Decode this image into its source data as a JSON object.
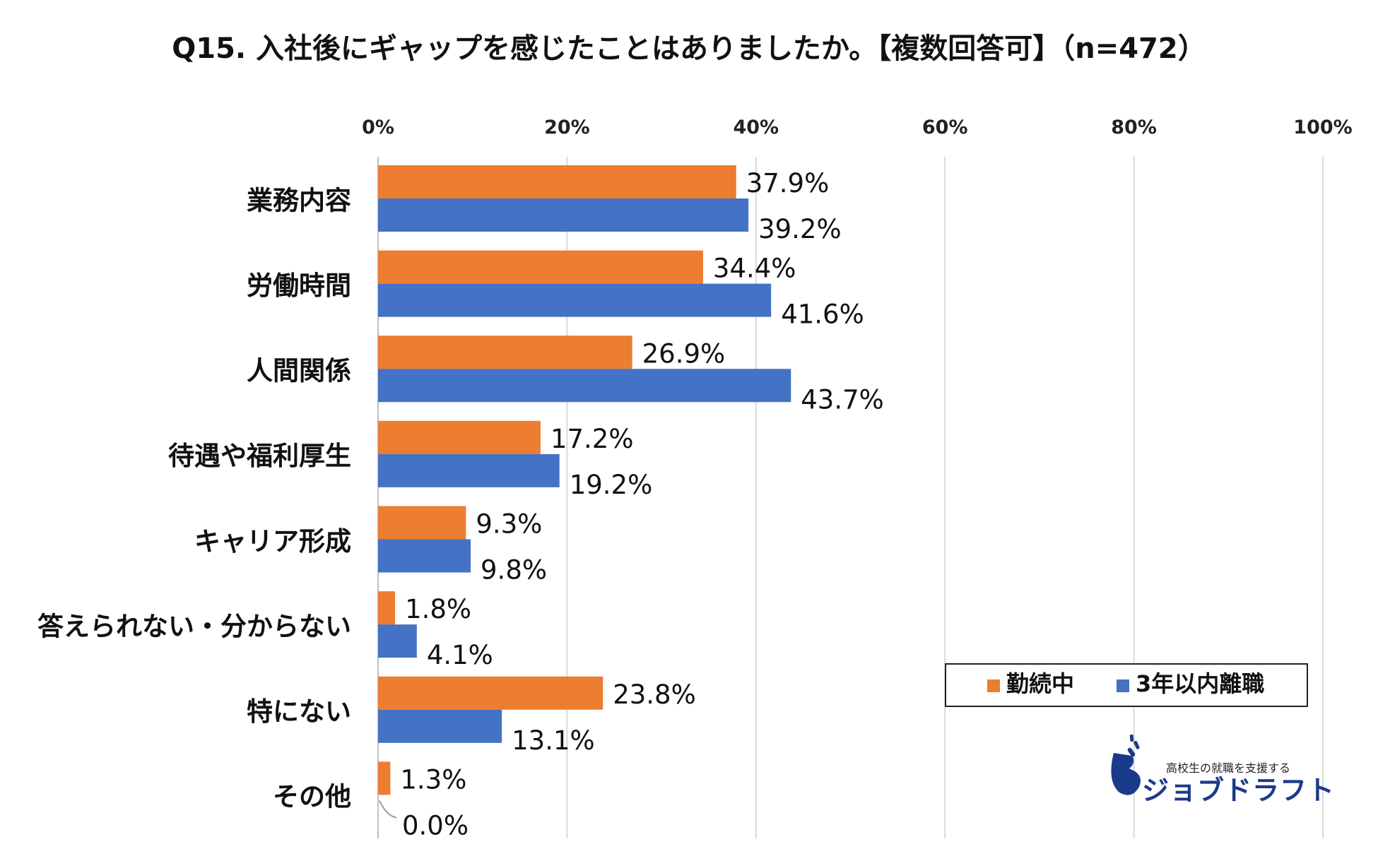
{
  "chart_data": {
    "type": "bar",
    "orientation": "horizontal",
    "title": "Q15. 入社後にギャップを感じたことはありましたか。【複数回答可】（n=472）",
    "x_ticks": [
      "0%",
      "20%",
      "40%",
      "60%",
      "80%",
      "100%"
    ],
    "xlim": [
      0,
      100
    ],
    "grid": true,
    "legend_position": "right",
    "categories": [
      "業務内容",
      "労働時間",
      "人間関係",
      "待遇や福利厚生",
      "キャリア形成",
      "答えられない・分からない",
      "特にない",
      "その他"
    ],
    "series": [
      {
        "name": "勤続中",
        "color": "#ed7d31",
        "values": [
          37.9,
          34.4,
          26.9,
          17.2,
          9.3,
          1.8,
          23.8,
          1.3
        ],
        "labels": [
          "37.9%",
          "34.4%",
          "26.9%",
          "17.2%",
          "9.3%",
          "1.8%",
          "23.8%",
          "1.3%"
        ]
      },
      {
        "name": "3年以内離職",
        "color": "#4472c4",
        "values": [
          39.2,
          41.6,
          43.7,
          19.2,
          9.8,
          4.1,
          13.1,
          0.0
        ],
        "labels": [
          "39.2%",
          "41.6%",
          "43.7%",
          "19.2%",
          "9.8%",
          "4.1%",
          "13.1%",
          "0.0%"
        ]
      }
    ]
  },
  "logo": {
    "tagline": "高校生の就職を支援する",
    "name": "ジョブドラフト",
    "color": "#1a3a8c"
  }
}
